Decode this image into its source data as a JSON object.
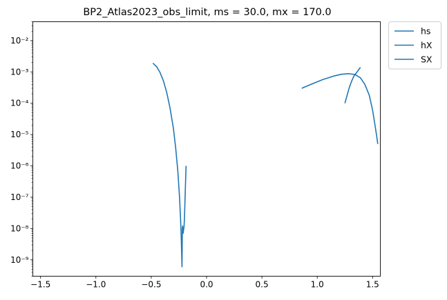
{
  "chart_data": {
    "type": "line",
    "title": "BP2_Atlas2023_obs_limit, ms = 30.0, mx = 170.0",
    "xlabel": "",
    "ylabel": "",
    "xlim": [
      -1.57,
      1.57
    ],
    "ylim": [
      3e-10,
      0.04
    ],
    "yscale": "log",
    "grid": false,
    "legend": "outside-upper-right",
    "x_ticks": [
      {
        "value": -1.5,
        "label": "−1.5"
      },
      {
        "value": -1.0,
        "label": "−1.0"
      },
      {
        "value": -0.5,
        "label": "−0.5"
      },
      {
        "value": 0.0,
        "label": "0.0"
      },
      {
        "value": 0.5,
        "label": "0.5"
      },
      {
        "value": 1.0,
        "label": "1.0"
      },
      {
        "value": 1.5,
        "label": "1.5"
      }
    ],
    "y_ticks": [
      {
        "value": 1e-09,
        "label": "10⁻⁹"
      },
      {
        "value": 1e-08,
        "label": "10⁻⁸"
      },
      {
        "value": 1e-07,
        "label": "10⁻⁷"
      },
      {
        "value": 1e-06,
        "label": "10⁻⁶"
      },
      {
        "value": 1e-05,
        "label": "10⁻⁵"
      },
      {
        "value": 0.0001,
        "label": "10⁻⁴"
      },
      {
        "value": 0.001,
        "label": "10⁻³"
      },
      {
        "value": 0.01,
        "label": "10⁻²"
      }
    ],
    "series": [
      {
        "name": "hs",
        "color": "#1f77b4",
        "points": [
          [
            -0.485,
            0.0019
          ],
          [
            -0.45,
            0.00145
          ],
          [
            -0.42,
            0.00095
          ],
          [
            -0.39,
            0.00052
          ],
          [
            -0.36,
            0.00022
          ],
          [
            -0.33,
            7e-05
          ],
          [
            -0.3,
            1.6e-05
          ],
          [
            -0.28,
            4e-06
          ],
          [
            -0.26,
            7e-07
          ],
          [
            -0.245,
            1.1e-07
          ],
          [
            -0.235,
            2e-08
          ],
          [
            -0.228,
            4e-09
          ],
          [
            -0.222,
            6e-10
          ],
          [
            -0.219,
            1e-08
          ],
          [
            -0.216,
            1.2e-08
          ],
          [
            -0.212,
            7e-09
          ],
          [
            -0.208,
            9e-09
          ],
          [
            -0.204,
            1.1e-08
          ],
          [
            -0.2,
            2e-08
          ],
          [
            -0.195,
            8e-08
          ],
          [
            -0.19,
            3e-07
          ],
          [
            -0.185,
            1e-06
          ]
        ]
      },
      {
        "name": "hX",
        "color": "#1f77b4",
        "points": [
          [
            0.86,
            0.0003
          ],
          [
            0.95,
            0.00041
          ],
          [
            1.05,
            0.00057
          ],
          [
            1.15,
            0.00074
          ],
          [
            1.22,
            0.00084
          ],
          [
            1.28,
            0.00088
          ],
          [
            1.34,
            0.00083
          ],
          [
            1.39,
            0.00065
          ],
          [
            1.43,
            0.0004
          ],
          [
            1.47,
            0.00018
          ],
          [
            1.5,
            6e-05
          ],
          [
            1.52,
            2.2e-05
          ],
          [
            1.535,
            1e-05
          ],
          [
            1.547,
            5e-06
          ]
        ]
      },
      {
        "name": "SX",
        "color": "#1f77b4",
        "points": [
          [
            1.25,
            0.0001
          ],
          [
            1.27,
            0.00018
          ],
          [
            1.29,
            0.00032
          ],
          [
            1.31,
            0.0005
          ],
          [
            1.33,
            0.00072
          ],
          [
            1.36,
            0.001
          ],
          [
            1.39,
            0.0014
          ]
        ]
      }
    ]
  }
}
